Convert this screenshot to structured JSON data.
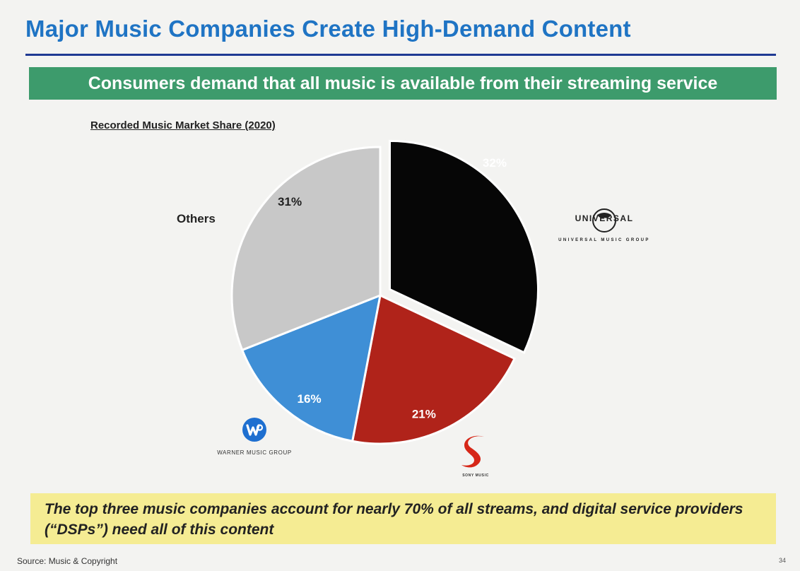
{
  "slide": {
    "title": "Major Music Companies Create High-Demand Content",
    "banner": "Consumers demand that all music is available from their streaming service",
    "callout": "The top three music companies account for nearly 70% of all streams, and digital service providers (“DSPs”) need all of this content",
    "source": "Source: Music & Copyright",
    "page_number": "34"
  },
  "labels": {
    "others": "Others"
  },
  "logos": {
    "universal_name": "UNIVERSAL",
    "universal_sub": "UNIVERSAL MUSIC GROUP",
    "warner_name": "WARNER MUSIC GROUP",
    "sony_name": "SONY MUSIC"
  },
  "chart_data": {
    "type": "pie",
    "title": "Recorded Music Market Share (2020)",
    "categories": [
      "Universal Music Group",
      "Sony Music",
      "Warner Music Group",
      "Others"
    ],
    "values": [
      32,
      21,
      16,
      31
    ],
    "value_labels": [
      "32%",
      "21%",
      "16%",
      "31%"
    ],
    "colors": [
      "#060606",
      "#b0231a",
      "#3f8fd6",
      "#c8c8c8"
    ],
    "exploded_slice": "Universal Music Group",
    "start_angle_deg": 0,
    "direction": "clockwise"
  }
}
